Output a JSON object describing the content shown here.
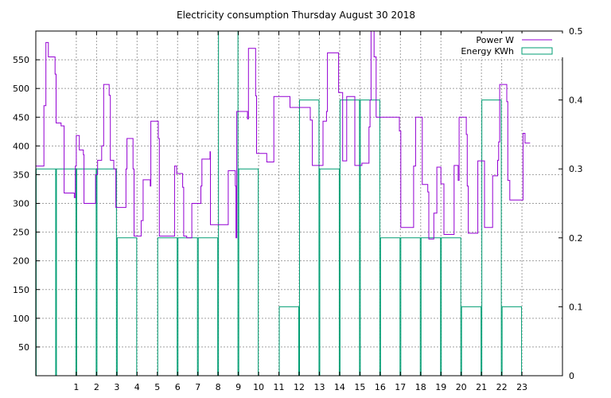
{
  "chart_data": {
    "type": "bar",
    "title": "Electricity consumption Thursday August 30 2018",
    "grid": true,
    "legend_position": "top-right",
    "x_range": [
      -1,
      25
    ],
    "y_range": [
      0,
      600
    ],
    "y2_range": [
      0,
      0.5
    ],
    "x_ticks": [
      1,
      2,
      3,
      4,
      5,
      6,
      7,
      8,
      9,
      10,
      11,
      12,
      13,
      14,
      15,
      16,
      17,
      18,
      19,
      20,
      21,
      22,
      23
    ],
    "y_ticks": [
      50,
      100,
      150,
      200,
      250,
      300,
      350,
      400,
      450,
      500,
      550
    ],
    "y2_ticks": [
      0,
      0.1,
      0.2,
      0.3,
      0.4,
      0.5
    ],
    "colors": {
      "power": "#9400d3",
      "energy": "#009e73",
      "grid": "#a0a0a0"
    },
    "series": [
      {
        "name": "Power W",
        "type": "line",
        "points": [
          [
            -1,
            365
          ],
          [
            -0.6,
            365
          ],
          [
            -0.6,
            470
          ],
          [
            -0.5,
            470
          ],
          [
            -0.5,
            580
          ],
          [
            -0.38,
            580
          ],
          [
            -0.38,
            555
          ],
          [
            -0.05,
            555
          ],
          [
            -0.05,
            525
          ],
          [
            0,
            525
          ],
          [
            0,
            440
          ],
          [
            0.25,
            440
          ],
          [
            0.25,
            435
          ],
          [
            0.4,
            435
          ],
          [
            0.4,
            318
          ],
          [
            0.9,
            318
          ],
          [
            0.9,
            310
          ],
          [
            0.95,
            310
          ],
          [
            0.95,
            365
          ],
          [
            1.0,
            365
          ],
          [
            1.0,
            418
          ],
          [
            1.15,
            418
          ],
          [
            1.15,
            393
          ],
          [
            1.35,
            393
          ],
          [
            1.35,
            385
          ],
          [
            1.38,
            385
          ],
          [
            1.38,
            300
          ],
          [
            1.95,
            300
          ],
          [
            1.95,
            350
          ],
          [
            2.05,
            350
          ],
          [
            2.05,
            375
          ],
          [
            2.25,
            375
          ],
          [
            2.25,
            400
          ],
          [
            2.35,
            400
          ],
          [
            2.35,
            507
          ],
          [
            2.62,
            507
          ],
          [
            2.62,
            488
          ],
          [
            2.68,
            488
          ],
          [
            2.68,
            375
          ],
          [
            2.85,
            375
          ],
          [
            2.85,
            360
          ],
          [
            2.95,
            360
          ],
          [
            2.95,
            293
          ],
          [
            3.45,
            293
          ],
          [
            3.45,
            360
          ],
          [
            3.5,
            360
          ],
          [
            3.5,
            413
          ],
          [
            3.8,
            413
          ],
          [
            3.8,
            360
          ],
          [
            3.85,
            360
          ],
          [
            3.85,
            243
          ],
          [
            4.2,
            243
          ],
          [
            4.2,
            270
          ],
          [
            4.3,
            270
          ],
          [
            4.3,
            341
          ],
          [
            4.65,
            341
          ],
          [
            4.65,
            330
          ],
          [
            4.68,
            330
          ],
          [
            4.68,
            443
          ],
          [
            5.05,
            443
          ],
          [
            5.05,
            413
          ],
          [
            5.1,
            413
          ],
          [
            5.1,
            243
          ],
          [
            5.85,
            243
          ],
          [
            5.85,
            365
          ],
          [
            5.95,
            365
          ],
          [
            5.95,
            352
          ],
          [
            6.25,
            352
          ],
          [
            6.25,
            328
          ],
          [
            6.3,
            328
          ],
          [
            6.3,
            243
          ],
          [
            6.45,
            243
          ],
          [
            6.45,
            240
          ],
          [
            6.7,
            240
          ],
          [
            6.7,
            300
          ],
          [
            7.15,
            300
          ],
          [
            7.15,
            330
          ],
          [
            7.2,
            330
          ],
          [
            7.2,
            377
          ],
          [
            7.6,
            377
          ],
          [
            7.6,
            390
          ],
          [
            7.62,
            390
          ],
          [
            7.62,
            263
          ],
          [
            8.5,
            263
          ],
          [
            8.5,
            357
          ],
          [
            8.85,
            357
          ],
          [
            8.85,
            330
          ],
          [
            8.88,
            330
          ],
          [
            8.88,
            240
          ],
          [
            8.92,
            240
          ],
          [
            8.92,
            460
          ],
          [
            9.45,
            460
          ],
          [
            9.45,
            447
          ],
          [
            9.5,
            447
          ],
          [
            9.5,
            570
          ],
          [
            9.85,
            570
          ],
          [
            9.85,
            487
          ],
          [
            9.9,
            487
          ],
          [
            9.9,
            387
          ],
          [
            10.4,
            387
          ],
          [
            10.4,
            372
          ],
          [
            10.75,
            372
          ],
          [
            10.75,
            486
          ],
          [
            11.55,
            486
          ],
          [
            11.55,
            467
          ],
          [
            12.55,
            467
          ],
          [
            12.55,
            445
          ],
          [
            12.65,
            445
          ],
          [
            12.65,
            366
          ],
          [
            13.18,
            366
          ],
          [
            13.18,
            443
          ],
          [
            13.35,
            443
          ],
          [
            13.35,
            460
          ],
          [
            13.4,
            460
          ],
          [
            13.4,
            562
          ],
          [
            13.95,
            562
          ],
          [
            13.95,
            493
          ],
          [
            14.15,
            493
          ],
          [
            14.15,
            374
          ],
          [
            14.35,
            374
          ],
          [
            14.35,
            486
          ],
          [
            14.75,
            486
          ],
          [
            14.75,
            366
          ],
          [
            15.1,
            366
          ],
          [
            15.1,
            370
          ],
          [
            15.45,
            370
          ],
          [
            15.45,
            433
          ],
          [
            15.5,
            433
          ],
          [
            15.5,
            480
          ],
          [
            15.55,
            480
          ],
          [
            15.55,
            600
          ],
          [
            15.7,
            600
          ],
          [
            15.7,
            555
          ],
          [
            15.8,
            555
          ],
          [
            15.8,
            450
          ],
          [
            16.95,
            450
          ],
          [
            16.95,
            426
          ],
          [
            17.02,
            426
          ],
          [
            17.02,
            258
          ],
          [
            17.65,
            258
          ],
          [
            17.65,
            365
          ],
          [
            17.75,
            365
          ],
          [
            17.75,
            450
          ],
          [
            18.08,
            450
          ],
          [
            18.08,
            333
          ],
          [
            18.35,
            333
          ],
          [
            18.35,
            320
          ],
          [
            18.4,
            320
          ],
          [
            18.4,
            238
          ],
          [
            18.65,
            238
          ],
          [
            18.65,
            283
          ],
          [
            18.8,
            283
          ],
          [
            18.8,
            363
          ],
          [
            19.0,
            363
          ],
          [
            19.0,
            334
          ],
          [
            19.15,
            334
          ],
          [
            19.15,
            246
          ],
          [
            19.65,
            246
          ],
          [
            19.65,
            366
          ],
          [
            19.85,
            366
          ],
          [
            19.85,
            340
          ],
          [
            19.9,
            340
          ],
          [
            19.9,
            450
          ],
          [
            20.25,
            450
          ],
          [
            20.25,
            420
          ],
          [
            20.3,
            420
          ],
          [
            20.3,
            330
          ],
          [
            20.35,
            330
          ],
          [
            20.35,
            248
          ],
          [
            20.82,
            248
          ],
          [
            20.82,
            374
          ],
          [
            21.15,
            374
          ],
          [
            21.15,
            258
          ],
          [
            21.55,
            258
          ],
          [
            21.55,
            348
          ],
          [
            21.8,
            348
          ],
          [
            21.8,
            375
          ],
          [
            21.85,
            375
          ],
          [
            21.85,
            407
          ],
          [
            21.9,
            407
          ],
          [
            21.9,
            507
          ],
          [
            22.25,
            507
          ],
          [
            22.25,
            477
          ],
          [
            22.3,
            477
          ],
          [
            22.3,
            340
          ],
          [
            22.4,
            340
          ],
          [
            22.4,
            306
          ],
          [
            23.05,
            306
          ],
          [
            23.05,
            422
          ],
          [
            23.15,
            422
          ],
          [
            23.15,
            405
          ],
          [
            23.4,
            405
          ]
        ]
      },
      {
        "name": "Energy KWh",
        "type": "step-bars",
        "axis": "y2",
        "bins": [
          [
            -1,
            0,
            0.3
          ],
          [
            0,
            1,
            0.3
          ],
          [
            1,
            2,
            0.3
          ],
          [
            2,
            3,
            0.3
          ],
          [
            3,
            4,
            0.2
          ],
          [
            4,
            5,
            0.0
          ],
          [
            5,
            6,
            0.2
          ],
          [
            6,
            7,
            0.2
          ],
          [
            7,
            8,
            0.2
          ],
          [
            8,
            9,
            0.5
          ],
          [
            9,
            10,
            0.3
          ],
          [
            10,
            11,
            0.0
          ],
          [
            11,
            12,
            0.1
          ],
          [
            12,
            13,
            0.4
          ],
          [
            13,
            14,
            0.3
          ],
          [
            14,
            15,
            0.4
          ],
          [
            15,
            16,
            0.4
          ],
          [
            16,
            17,
            0.2
          ],
          [
            17,
            18,
            0.2
          ],
          [
            18,
            19,
            0.2
          ],
          [
            19,
            20,
            0.2
          ],
          [
            20,
            21,
            0.1
          ],
          [
            21,
            22,
            0.4
          ],
          [
            22,
            23,
            0.1
          ],
          [
            23,
            23.4,
            0.0
          ]
        ]
      }
    ]
  }
}
